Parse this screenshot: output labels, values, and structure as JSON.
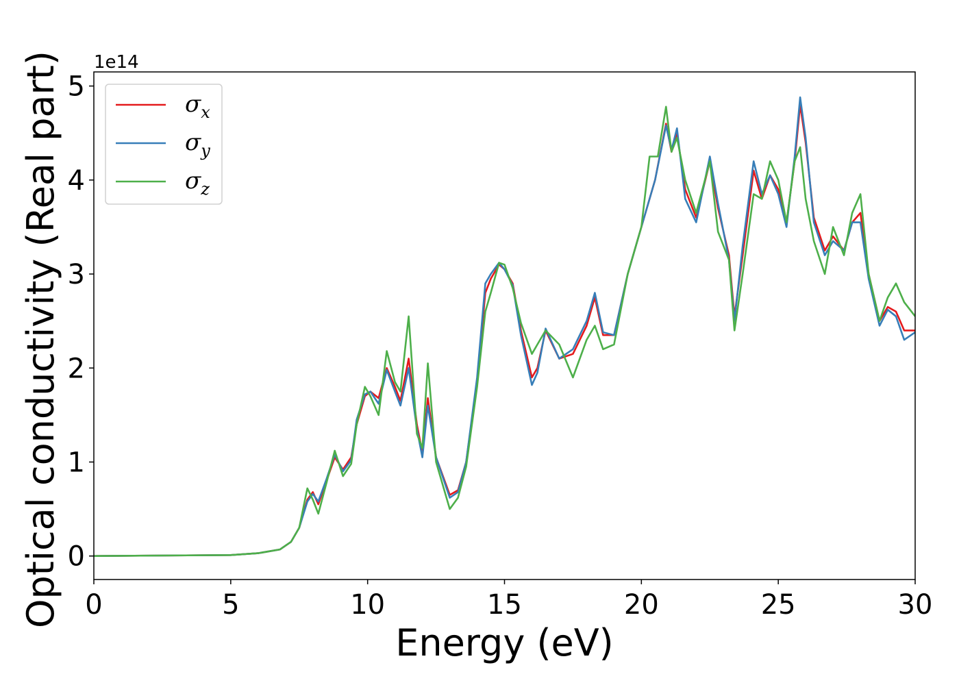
{
  "chart_data": {
    "type": "line",
    "xlabel": "Energy (eV)",
    "ylabel": "Optical conductivity (Real part)",
    "y_offset_label": "1e14",
    "xlim": [
      0,
      30
    ],
    "ylim": [
      -0.25,
      5.15
    ],
    "x_ticks": [
      0,
      5,
      10,
      15,
      20,
      25,
      30
    ],
    "x_tick_labels": [
      "0",
      "5",
      "10",
      "15",
      "20",
      "25",
      "30"
    ],
    "y_ticks": [
      0,
      1,
      2,
      3,
      4,
      5
    ],
    "y_tick_labels": [
      "0",
      "1",
      "2",
      "3",
      "4",
      "5"
    ],
    "grid": false,
    "legend_position": "top-left",
    "series": [
      {
        "name": "σx",
        "symbol": "σ",
        "subscript": "x",
        "color": "#e41a1c",
        "points": [
          [
            0,
            0
          ],
          [
            5,
            0.01
          ],
          [
            6,
            0.03
          ],
          [
            6.8,
            0.07
          ],
          [
            7.2,
            0.15
          ],
          [
            7.5,
            0.3
          ],
          [
            7.8,
            0.6
          ],
          [
            8.0,
            0.68
          ],
          [
            8.2,
            0.55
          ],
          [
            8.5,
            0.8
          ],
          [
            8.8,
            1.05
          ],
          [
            9.1,
            0.92
          ],
          [
            9.4,
            1.05
          ],
          [
            9.6,
            1.4
          ],
          [
            9.9,
            1.7
          ],
          [
            10.1,
            1.75
          ],
          [
            10.4,
            1.68
          ],
          [
            10.7,
            2.0
          ],
          [
            11.0,
            1.8
          ],
          [
            11.2,
            1.65
          ],
          [
            11.5,
            2.1
          ],
          [
            11.8,
            1.4
          ],
          [
            12.0,
            1.1
          ],
          [
            12.2,
            1.68
          ],
          [
            12.5,
            1.05
          ],
          [
            13.0,
            0.65
          ],
          [
            13.3,
            0.7
          ],
          [
            13.6,
            1.0
          ],
          [
            14.0,
            1.85
          ],
          [
            14.3,
            2.8
          ],
          [
            14.5,
            2.95
          ],
          [
            14.8,
            3.1
          ],
          [
            15.0,
            3.05
          ],
          [
            15.3,
            2.9
          ],
          [
            15.6,
            2.4
          ],
          [
            16.0,
            1.9
          ],
          [
            16.2,
            2.0
          ],
          [
            16.5,
            2.4
          ],
          [
            17.0,
            2.1
          ],
          [
            17.5,
            2.15
          ],
          [
            18.0,
            2.45
          ],
          [
            18.3,
            2.75
          ],
          [
            18.6,
            2.35
          ],
          [
            19.0,
            2.35
          ],
          [
            19.5,
            3.0
          ],
          [
            20.0,
            3.5
          ],
          [
            20.5,
            4.0
          ],
          [
            20.9,
            4.6
          ],
          [
            21.1,
            4.3
          ],
          [
            21.3,
            4.5
          ],
          [
            21.6,
            3.9
          ],
          [
            22.0,
            3.6
          ],
          [
            22.5,
            4.2
          ],
          [
            22.8,
            3.7
          ],
          [
            23.2,
            3.2
          ],
          [
            23.4,
            2.55
          ],
          [
            23.7,
            3.2
          ],
          [
            24.1,
            4.1
          ],
          [
            24.4,
            3.8
          ],
          [
            24.7,
            4.05
          ],
          [
            25.0,
            3.9
          ],
          [
            25.3,
            3.55
          ],
          [
            25.6,
            4.2
          ],
          [
            25.8,
            4.8
          ],
          [
            26.0,
            4.4
          ],
          [
            26.3,
            3.6
          ],
          [
            26.7,
            3.25
          ],
          [
            27.0,
            3.4
          ],
          [
            27.4,
            3.25
          ],
          [
            27.7,
            3.55
          ],
          [
            28.0,
            3.65
          ],
          [
            28.3,
            3.0
          ],
          [
            28.7,
            2.5
          ],
          [
            29.0,
            2.65
          ],
          [
            29.3,
            2.6
          ],
          [
            29.6,
            2.4
          ],
          [
            30.0,
            2.4
          ]
        ]
      },
      {
        "name": "σy",
        "symbol": "σ",
        "subscript": "y",
        "color": "#377eb8",
        "points": [
          [
            0,
            0
          ],
          [
            5,
            0.01
          ],
          [
            6,
            0.03
          ],
          [
            6.8,
            0.07
          ],
          [
            7.2,
            0.15
          ],
          [
            7.5,
            0.3
          ],
          [
            7.8,
            0.58
          ],
          [
            8.0,
            0.66
          ],
          [
            8.2,
            0.58
          ],
          [
            8.5,
            0.82
          ],
          [
            8.8,
            1.08
          ],
          [
            9.1,
            0.9
          ],
          [
            9.4,
            1.02
          ],
          [
            9.6,
            1.45
          ],
          [
            9.9,
            1.72
          ],
          [
            10.1,
            1.75
          ],
          [
            10.4,
            1.62
          ],
          [
            10.7,
            1.98
          ],
          [
            11.0,
            1.75
          ],
          [
            11.2,
            1.6
          ],
          [
            11.5,
            2.0
          ],
          [
            11.8,
            1.35
          ],
          [
            12.0,
            1.05
          ],
          [
            12.2,
            1.6
          ],
          [
            12.5,
            1.05
          ],
          [
            13.0,
            0.62
          ],
          [
            13.3,
            0.68
          ],
          [
            13.6,
            1.0
          ],
          [
            14.0,
            1.9
          ],
          [
            14.3,
            2.9
          ],
          [
            14.5,
            3.0
          ],
          [
            14.8,
            3.12
          ],
          [
            15.0,
            3.05
          ],
          [
            15.3,
            2.88
          ],
          [
            15.6,
            2.35
          ],
          [
            16.0,
            1.82
          ],
          [
            16.2,
            1.95
          ],
          [
            16.5,
            2.42
          ],
          [
            17.0,
            2.1
          ],
          [
            17.5,
            2.2
          ],
          [
            18.0,
            2.5
          ],
          [
            18.3,
            2.8
          ],
          [
            18.6,
            2.38
          ],
          [
            19.0,
            2.35
          ],
          [
            19.5,
            3.0
          ],
          [
            20.0,
            3.5
          ],
          [
            20.5,
            4.0
          ],
          [
            20.9,
            4.58
          ],
          [
            21.1,
            4.32
          ],
          [
            21.3,
            4.55
          ],
          [
            21.6,
            3.8
          ],
          [
            22.0,
            3.55
          ],
          [
            22.5,
            4.25
          ],
          [
            22.8,
            3.75
          ],
          [
            23.2,
            3.15
          ],
          [
            23.4,
            2.5
          ],
          [
            23.7,
            3.3
          ],
          [
            24.1,
            4.2
          ],
          [
            24.4,
            3.85
          ],
          [
            24.7,
            4.05
          ],
          [
            25.0,
            3.85
          ],
          [
            25.3,
            3.5
          ],
          [
            25.6,
            4.25
          ],
          [
            25.8,
            4.88
          ],
          [
            26.0,
            4.45
          ],
          [
            26.3,
            3.55
          ],
          [
            26.7,
            3.2
          ],
          [
            27.0,
            3.35
          ],
          [
            27.4,
            3.25
          ],
          [
            27.7,
            3.55
          ],
          [
            28.0,
            3.55
          ],
          [
            28.3,
            2.95
          ],
          [
            28.7,
            2.45
          ],
          [
            29.0,
            2.62
          ],
          [
            29.3,
            2.55
          ],
          [
            29.6,
            2.3
          ],
          [
            30.0,
            2.38
          ]
        ]
      },
      {
        "name": "σz",
        "symbol": "σ",
        "subscript": "z",
        "color": "#4daf4a",
        "points": [
          [
            0,
            0
          ],
          [
            5,
            0.01
          ],
          [
            6,
            0.03
          ],
          [
            6.8,
            0.07
          ],
          [
            7.2,
            0.15
          ],
          [
            7.5,
            0.3
          ],
          [
            7.8,
            0.72
          ],
          [
            8.0,
            0.6
          ],
          [
            8.2,
            0.45
          ],
          [
            8.5,
            0.78
          ],
          [
            8.8,
            1.12
          ],
          [
            9.1,
            0.85
          ],
          [
            9.4,
            0.98
          ],
          [
            9.6,
            1.4
          ],
          [
            9.9,
            1.8
          ],
          [
            10.1,
            1.7
          ],
          [
            10.4,
            1.5
          ],
          [
            10.7,
            2.18
          ],
          [
            11.0,
            1.85
          ],
          [
            11.2,
            1.75
          ],
          [
            11.5,
            2.55
          ],
          [
            11.8,
            1.3
          ],
          [
            12.0,
            1.15
          ],
          [
            12.2,
            2.05
          ],
          [
            12.5,
            1.0
          ],
          [
            13.0,
            0.5
          ],
          [
            13.3,
            0.62
          ],
          [
            13.6,
            0.95
          ],
          [
            14.0,
            1.8
          ],
          [
            14.3,
            2.6
          ],
          [
            14.5,
            2.8
          ],
          [
            14.8,
            3.12
          ],
          [
            15.0,
            3.1
          ],
          [
            15.3,
            2.85
          ],
          [
            15.6,
            2.48
          ],
          [
            16.0,
            2.15
          ],
          [
            16.2,
            2.25
          ],
          [
            16.5,
            2.4
          ],
          [
            17.0,
            2.25
          ],
          [
            17.5,
            1.9
          ],
          [
            18.0,
            2.3
          ],
          [
            18.3,
            2.45
          ],
          [
            18.6,
            2.2
          ],
          [
            19.0,
            2.25
          ],
          [
            19.5,
            3.0
          ],
          [
            20.0,
            3.5
          ],
          [
            20.3,
            4.25
          ],
          [
            20.6,
            4.25
          ],
          [
            20.9,
            4.78
          ],
          [
            21.1,
            4.3
          ],
          [
            21.3,
            4.45
          ],
          [
            21.6,
            4.0
          ],
          [
            22.0,
            3.65
          ],
          [
            22.5,
            4.2
          ],
          [
            22.8,
            3.45
          ],
          [
            23.2,
            3.15
          ],
          [
            23.4,
            2.4
          ],
          [
            23.7,
            3.0
          ],
          [
            24.1,
            3.85
          ],
          [
            24.4,
            3.8
          ],
          [
            24.7,
            4.2
          ],
          [
            25.0,
            4.0
          ],
          [
            25.3,
            3.55
          ],
          [
            25.6,
            4.2
          ],
          [
            25.8,
            4.35
          ],
          [
            26.0,
            3.8
          ],
          [
            26.3,
            3.35
          ],
          [
            26.7,
            3.0
          ],
          [
            27.0,
            3.5
          ],
          [
            27.4,
            3.2
          ],
          [
            27.7,
            3.65
          ],
          [
            28.0,
            3.85
          ],
          [
            28.3,
            3.0
          ],
          [
            28.7,
            2.5
          ],
          [
            29.0,
            2.75
          ],
          [
            29.3,
            2.9
          ],
          [
            29.6,
            2.7
          ],
          [
            30.0,
            2.55
          ]
        ]
      }
    ]
  }
}
